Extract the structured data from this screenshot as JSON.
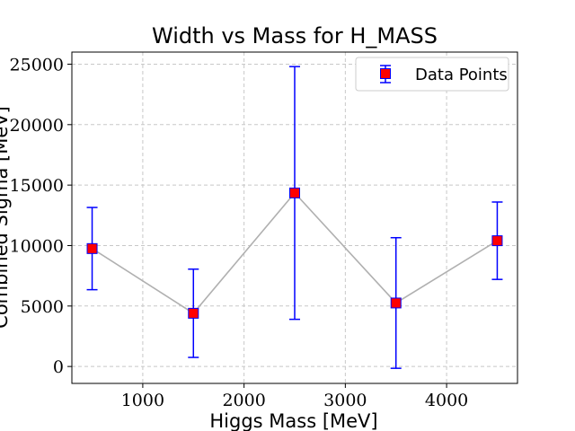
{
  "chart_data": {
    "type": "scatter",
    "title": "Width vs Mass for H_MASS",
    "xlabel": "Higgs Mass [MeV]",
    "ylabel": "Combined Sigma [MeV]",
    "xlim": [
      300,
      4700
    ],
    "ylim": [
      -1400,
      26000
    ],
    "xticks": [
      1000,
      2000,
      3000,
      4000
    ],
    "yticks": [
      0,
      5000,
      10000,
      15000,
      20000,
      25000
    ],
    "grid": true,
    "legend_position": "top-right",
    "series": [
      {
        "name": "Data Points",
        "marker_color": "#ff0000",
        "marker_edge_color": "#0000ff",
        "error_color": "#0000ff",
        "line_color": "#b0b0b0",
        "points": [
          {
            "x": 500,
            "y": 9750,
            "err": 3400
          },
          {
            "x": 1500,
            "y": 4400,
            "err": 3650
          },
          {
            "x": 2500,
            "y": 14350,
            "err": 10450
          },
          {
            "x": 3500,
            "y": 5250,
            "err": 5400
          },
          {
            "x": 4500,
            "y": 10400,
            "err": 3200
          }
        ]
      }
    ]
  }
}
